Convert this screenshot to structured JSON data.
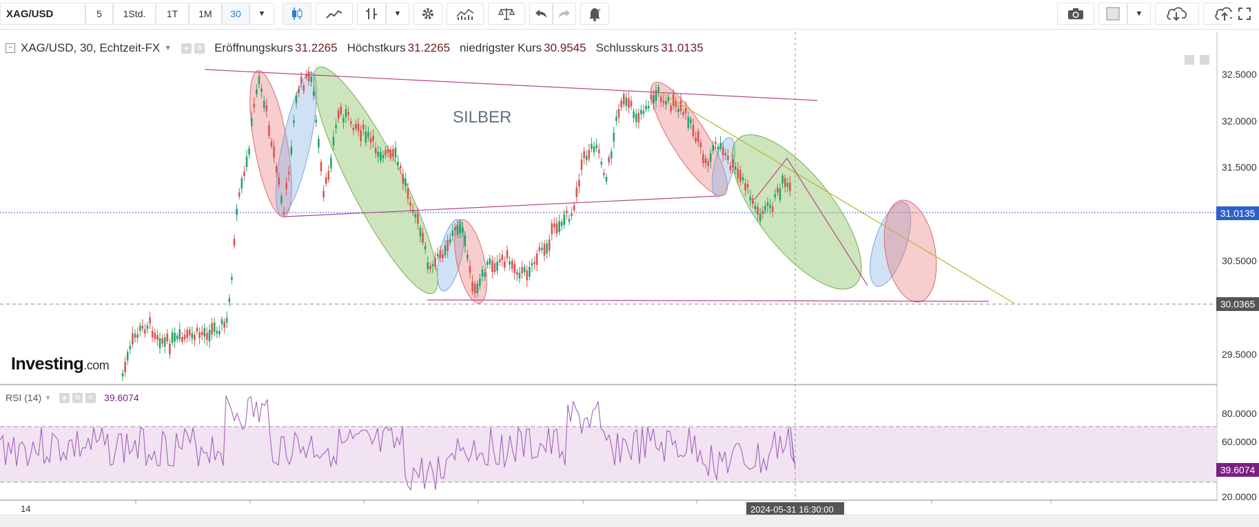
{
  "toolbar": {
    "symbol": "XAG/USD",
    "intervals": [
      "5",
      "1Std.",
      "1T",
      "1M",
      "30"
    ],
    "active_interval": "30"
  },
  "legend": {
    "title": "XAG/USD, 30, Echtzeit-FX",
    "open_label": "Eröffnungskurs",
    "open_value": "31.2265",
    "high_label": "Höchstkurs",
    "high_value": "31.2265",
    "low_label": "niedrigster Kurs",
    "low_value": "30.9545",
    "close_label": "Schlusskurs",
    "close_value": "31.0135"
  },
  "annotation_text": "SILBER",
  "price_axis": {
    "ticks": [
      "32.5000",
      "32.0000",
      "31.5000",
      "30.5000",
      "29.5000"
    ],
    "current_price": "31.0135",
    "marked_price": "30.0365"
  },
  "rsi": {
    "label": "RSI (14)",
    "value": "39.6074",
    "ticks": [
      "80.0000",
      "60.0000",
      "20.0000"
    ]
  },
  "time_axis": {
    "first_label": "14",
    "cursor_label": "2024-05-31 16:30:00"
  },
  "logo": {
    "main": "Investing",
    "suffix": ".com"
  },
  "colors": {
    "up": "#26a269",
    "down": "#d9534f",
    "rsi_line": "#a35fc0",
    "rsi_band": "#f1e3f1",
    "current_price_tag": "#2962c9",
    "marked_price_tag": "#555555",
    "rsi_tag": "#7b1f84"
  }
}
